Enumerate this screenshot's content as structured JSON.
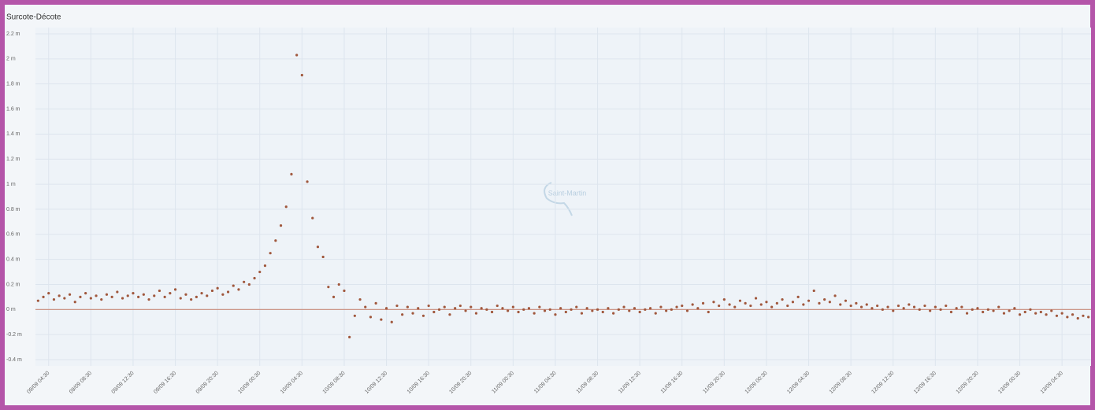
{
  "chart_data": {
    "type": "scatter",
    "title": "Surcote-Décote",
    "annotation": "Saint-Martin",
    "color": "#a0573c",
    "grid": true,
    "ylim": [
      -0.45,
      2.25
    ],
    "yticks": [
      {
        "value": -0.4,
        "label": "-0.4 m"
      },
      {
        "value": -0.2,
        "label": "-0.2 m"
      },
      {
        "value": 0,
        "label": "0 m"
      },
      {
        "value": 0.2,
        "label": "0.2 m"
      },
      {
        "value": 0.4,
        "label": "0.4 m"
      },
      {
        "value": 0.6,
        "label": "0.6 m"
      },
      {
        "value": 0.8,
        "label": "0.8 m"
      },
      {
        "value": 1,
        "label": "1 m"
      },
      {
        "value": 1.2,
        "label": "1.2 m"
      },
      {
        "value": 1.4,
        "label": "1.4 m"
      },
      {
        "value": 1.6,
        "label": "1.6 m"
      },
      {
        "value": 1.8,
        "label": "1.8 m"
      },
      {
        "value": 2,
        "label": "2 m"
      },
      {
        "value": 2.2,
        "label": "2.2 m"
      }
    ],
    "categories": [
      null,
      null,
      "09/09 04:30",
      null,
      null,
      null,
      null,
      null,
      null,
      null,
      "09/09 08:30",
      null,
      null,
      null,
      null,
      null,
      null,
      null,
      "09/09 12:30",
      null,
      null,
      null,
      null,
      null,
      null,
      null,
      "09/09 16:30",
      null,
      null,
      null,
      null,
      null,
      null,
      null,
      "09/09 20:30",
      null,
      null,
      null,
      null,
      null,
      null,
      null,
      "10/09 00:30",
      null,
      null,
      null,
      null,
      null,
      null,
      null,
      "10/09 04:30",
      null,
      null,
      null,
      null,
      null,
      null,
      null,
      "10/09 08:30",
      null,
      null,
      null,
      null,
      null,
      null,
      null,
      "10/09 12:30",
      null,
      null,
      null,
      null,
      null,
      null,
      null,
      "10/09 16:30",
      null,
      null,
      null,
      null,
      null,
      null,
      null,
      "10/09 20:30",
      null,
      null,
      null,
      null,
      null,
      null,
      null,
      "11/09 00:30",
      null,
      null,
      null,
      null,
      null,
      null,
      null,
      "11/09 04:30",
      null,
      null,
      null,
      null,
      null,
      null,
      null,
      "11/09 08:30",
      null,
      null,
      null,
      null,
      null,
      null,
      null,
      "11/09 12:30",
      null,
      null,
      null,
      null,
      null,
      null,
      null,
      "11/09 16:30",
      null,
      null,
      null,
      null,
      null,
      null,
      null,
      "11/09 20:30",
      null,
      null,
      null,
      null,
      null,
      null,
      null,
      "12/09 00:30",
      null,
      null,
      null,
      null,
      null,
      null,
      null,
      "12/09 04:30",
      null,
      null,
      null,
      null,
      null,
      null,
      null,
      "12/09 08:30",
      null,
      null,
      null,
      null,
      null,
      null,
      null,
      "12/09 12:30",
      null,
      null,
      null,
      null,
      null,
      null,
      null,
      "12/09 16:30",
      null,
      null,
      null,
      null,
      null,
      null,
      null,
      "12/09 20:30",
      null,
      null,
      null,
      null,
      null,
      null,
      null,
      "13/09 00:30",
      null,
      null,
      null,
      null,
      null,
      null,
      null,
      "13/09 04:30",
      null,
      null,
      null,
      null,
      null
    ],
    "values": [
      0.07,
      0.1,
      0.13,
      0.08,
      0.11,
      0.09,
      0.12,
      0.06,
      0.1,
      0.13,
      0.09,
      0.11,
      0.08,
      0.12,
      0.1,
      0.14,
      0.09,
      0.11,
      0.13,
      0.1,
      0.12,
      0.08,
      0.11,
      0.15,
      0.1,
      0.13,
      0.16,
      0.09,
      0.12,
      0.08,
      0.1,
      0.13,
      0.11,
      0.15,
      0.17,
      0.12,
      0.14,
      0.19,
      0.16,
      0.22,
      0.2,
      0.25,
      0.3,
      0.35,
      0.45,
      0.55,
      0.67,
      0.82,
      1.08,
      2.03,
      1.87,
      1.02,
      0.73,
      0.5,
      0.42,
      0.18,
      0.1,
      0.2,
      0.15,
      -0.22,
      -0.05,
      0.08,
      0.02,
      -0.06,
      0.05,
      -0.08,
      0.01,
      -0.1,
      0.03,
      -0.04,
      0.02,
      -0.03,
      0.01,
      -0.05,
      0.03,
      -0.02,
      0,
      0.02,
      -0.04,
      0.01,
      0.03,
      -0.01,
      0.02,
      -0.03,
      0.01,
      0,
      -0.02,
      0.03,
      0.01,
      -0.01,
      0.02,
      -0.02,
      0,
      0.01,
      -0.03,
      0.02,
      -0.01,
      0,
      -0.04,
      0.01,
      -0.02,
      0,
      0.02,
      -0.03,
      0.01,
      -0.01,
      0,
      -0.02,
      0.01,
      -0.03,
      0,
      0.02,
      -0.01,
      0.01,
      -0.02,
      0,
      0.01,
      -0.03,
      0.02,
      -0.01,
      0,
      0.02,
      0.03,
      -0.01,
      0.04,
      0.01,
      0.05,
      -0.02,
      0.06,
      0.03,
      0.08,
      0.04,
      0.02,
      0.07,
      0.05,
      0.03,
      0.09,
      0.04,
      0.06,
      0.02,
      0.05,
      0.08,
      0.03,
      0.06,
      0.1,
      0.04,
      0.07,
      0.15,
      0.05,
      0.08,
      0.06,
      0.11,
      0.04,
      0.07,
      0.03,
      0.05,
      0.02,
      0.04,
      0.01,
      0.03,
      0,
      0.02,
      -0.01,
      0.03,
      0.01,
      0.04,
      0.02,
      0,
      0.03,
      -0.01,
      0.02,
      0,
      0.03,
      -0.02,
      0.01,
      0.02,
      -0.03,
      0,
      0.01,
      -0.02,
      0,
      -0.01,
      0.02,
      -0.03,
      -0.01,
      0.01,
      -0.04,
      -0.02,
      0,
      -0.03,
      -0.02,
      -0.04,
      -0.01,
      -0.05,
      -0.03,
      -0.06,
      -0.04,
      -0.07,
      -0.05,
      -0.06
    ]
  }
}
